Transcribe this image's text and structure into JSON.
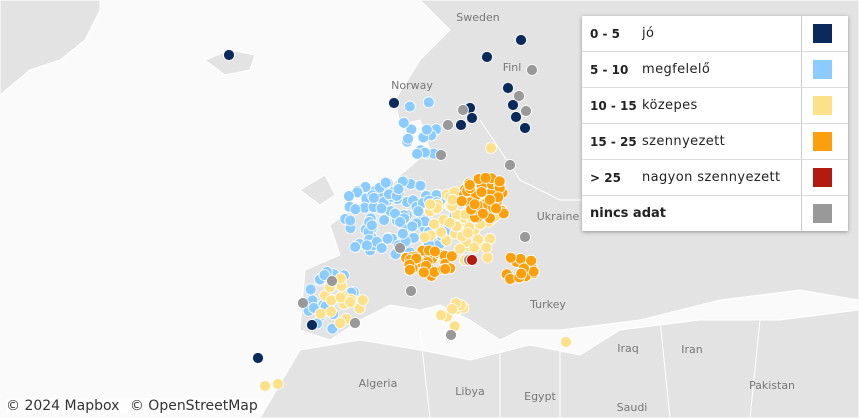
{
  "map_labels": [
    "Sweden",
    "Norway",
    "Finl",
    "Ukraine",
    "Turkey",
    "Iraq",
    "Iran",
    "Algeria",
    "Libya",
    "Egypt",
    "Saudi",
    "Pakistan"
  ],
  "legend": [
    {
      "range": "0 - 5",
      "label": "jó",
      "color": "#0b2a5c"
    },
    {
      "range": "5 - 10",
      "label": "megfelelő",
      "color": "#8ccbff"
    },
    {
      "range": "10 - 15",
      "label": "közepes",
      "color": "#fde08a"
    },
    {
      "range": "15 - 25",
      "label": "szennyezett",
      "color": "#fb9f0c"
    },
    {
      "range": "> 25",
      "label": "nagyon szennyezett",
      "color": "#b31b10"
    },
    {
      "range": "",
      "label": "nincs adat",
      "color": "#999999"
    }
  ],
  "attribution": [
    "© 2024 Mapbox",
    "© OpenStreetMap"
  ]
}
